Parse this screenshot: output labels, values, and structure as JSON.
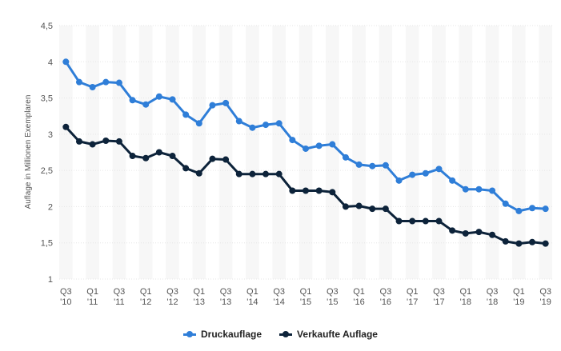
{
  "chart_data": {
    "type": "line",
    "title": "",
    "xlabel": "",
    "ylabel": "Auflage in Millionen Exemplaren",
    "ylim": [
      1,
      4.5
    ],
    "yticks": [
      "1",
      "1,5",
      "2",
      "2,5",
      "3",
      "3,5",
      "4",
      "4,5"
    ],
    "ytick_values": [
      1,
      1.5,
      2,
      2.5,
      3,
      3.5,
      4,
      4.5
    ],
    "x": [
      "Q3 '10",
      "Q4 '10",
      "Q1 '11",
      "Q2 '11",
      "Q3 '11",
      "Q4 '11",
      "Q1 '12",
      "Q2 '12",
      "Q3 '12",
      "Q4 '12",
      "Q1 '13",
      "Q2 '13",
      "Q3 '13",
      "Q4 '13",
      "Q1 '14",
      "Q2 '14",
      "Q3 '14",
      "Q4 '14",
      "Q1 '15",
      "Q2 '15",
      "Q3 '15",
      "Q4 '15",
      "Q1 '16",
      "Q2 '16",
      "Q3 '16",
      "Q4 '16",
      "Q1 '17",
      "Q2 '17",
      "Q3 '17",
      "Q4 '17",
      "Q1 '18",
      "Q2 '18",
      "Q3 '18",
      "Q4 '18",
      "Q1 '19",
      "Q2 '19",
      "Q3 '19"
    ],
    "xtick_labels": [
      {
        "index": 0,
        "q": "Q3",
        "y": "'10"
      },
      {
        "index": 2,
        "q": "Q1",
        "y": "'11"
      },
      {
        "index": 4,
        "q": "Q3",
        "y": "'11"
      },
      {
        "index": 6,
        "q": "Q1",
        "y": "'12"
      },
      {
        "index": 8,
        "q": "Q3",
        "y": "'12"
      },
      {
        "index": 10,
        "q": "Q1",
        "y": "'13"
      },
      {
        "index": 12,
        "q": "Q3",
        "y": "'13"
      },
      {
        "index": 14,
        "q": "Q1",
        "y": "'14"
      },
      {
        "index": 16,
        "q": "Q3",
        "y": "'14"
      },
      {
        "index": 18,
        "q": "Q1",
        "y": "'15"
      },
      {
        "index": 20,
        "q": "Q3",
        "y": "'15"
      },
      {
        "index": 22,
        "q": "Q1",
        "y": "'16"
      },
      {
        "index": 24,
        "q": "Q3",
        "y": "'16"
      },
      {
        "index": 26,
        "q": "Q1",
        "y": "'17"
      },
      {
        "index": 28,
        "q": "Q3",
        "y": "'17"
      },
      {
        "index": 30,
        "q": "Q1",
        "y": "'18"
      },
      {
        "index": 32,
        "q": "Q3",
        "y": "'18"
      },
      {
        "index": 34,
        "q": "Q1",
        "y": "'19"
      },
      {
        "index": 36,
        "q": "Q3",
        "y": "'19"
      }
    ],
    "series": [
      {
        "name": "Druckauflage",
        "color": "#2f7ed8",
        "values": [
          4.0,
          3.72,
          3.65,
          3.72,
          3.71,
          3.47,
          3.41,
          3.52,
          3.48,
          3.27,
          3.15,
          3.4,
          3.43,
          3.18,
          3.09,
          3.13,
          3.15,
          2.92,
          2.8,
          2.84,
          2.86,
          2.68,
          2.58,
          2.56,
          2.57,
          2.36,
          2.44,
          2.46,
          2.52,
          2.36,
          2.24,
          2.24,
          2.22,
          2.04,
          1.94,
          1.98,
          1.97
        ]
      },
      {
        "name": "Verkaufte Auflage",
        "color": "#0d233a",
        "values": [
          3.1,
          2.9,
          2.86,
          2.91,
          2.9,
          2.7,
          2.67,
          2.75,
          2.7,
          2.53,
          2.46,
          2.66,
          2.65,
          2.45,
          2.45,
          2.45,
          2.45,
          2.22,
          2.22,
          2.22,
          2.2,
          2.0,
          2.01,
          1.97,
          1.97,
          1.8,
          1.8,
          1.8,
          1.8,
          1.67,
          1.63,
          1.65,
          1.61,
          1.52,
          1.49,
          1.51,
          1.49
        ]
      }
    ],
    "grid": true,
    "legend": "bottom-center"
  }
}
